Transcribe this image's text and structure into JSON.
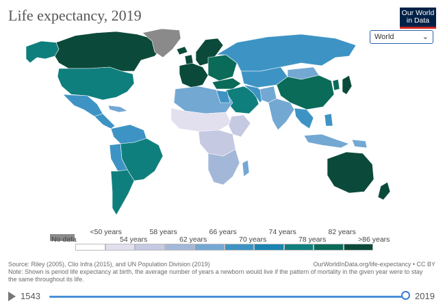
{
  "title": "Life expectancy, 2019",
  "logo": {
    "line1": "Our World",
    "line2": "in Data"
  },
  "region_select": {
    "value": "World",
    "chevron": "⌄"
  },
  "legend": {
    "no_data_label": "No data",
    "top_labels": [
      "<50 years",
      "58 years",
      "66 years",
      "74 years",
      "82 years"
    ],
    "bottom_labels": [
      "54 years",
      "62 years",
      "70 years",
      "78 years",
      ">86 years"
    ],
    "bins": [
      "#ffffff",
      "#e2dfee",
      "#c6c9e2",
      "#a3b8d9",
      "#73a8d3",
      "#3d94c4",
      "#1a84b0",
      "#0f7f7d",
      "#0a6b58",
      "#0b4a3a"
    ]
  },
  "colors": {
    "no_data": "#8a8a8a",
    "high": "#0b4a3a",
    "upper": "#0a6b58",
    "mid_high": "#0f7f7d",
    "mid": "#3d94c4",
    "mid_low": "#73a8d3",
    "low": "#a3b8d9",
    "lower": "#c6c9e2",
    "lowest": "#e2dfee",
    "border": "#ffffff"
  },
  "source": "Source: Riley (2005), Clio Infra (2015), and UN Population Division (2019)",
  "note": "Note: Shown is period life expectancy at birth, the average number of years a newborn would live if the pattern of mortality in the given year were to stay the same throughout its life.",
  "attribution": "OurWorldInData.org/life-expectancy • CC BY",
  "timeline": {
    "start_year": "1543",
    "end_year": "2019",
    "progress": 1.0
  }
}
